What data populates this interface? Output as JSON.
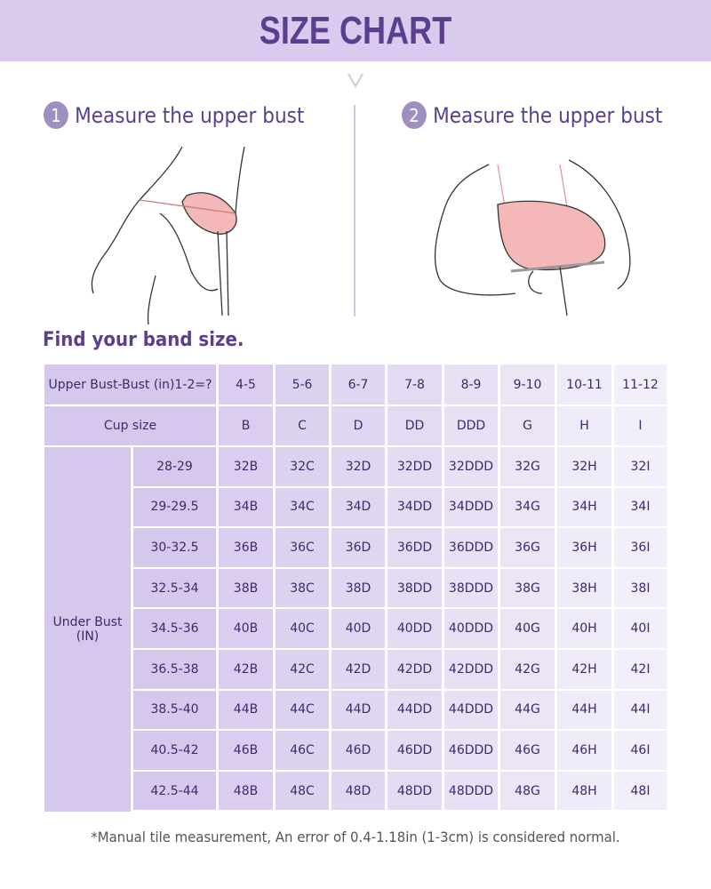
{
  "title": "SIZE CHART",
  "steps": [
    {
      "number": "1",
      "label": "Measure the upper bust"
    },
    {
      "number": "2",
      "label": "Measure the upper bust"
    }
  ],
  "subtitle": "Find your band size.",
  "table": {
    "diff_header": "Upper Bust-Bust (in)1-2=?",
    "diff_values": [
      "4-5",
      "5-6",
      "6-7",
      "7-8",
      "8-9",
      "9-10",
      "10-11",
      "11-12"
    ],
    "cup_header": "Cup size",
    "cups": [
      "B",
      "C",
      "D",
      "DD",
      "DDD",
      "G",
      "H",
      "I"
    ],
    "under_bust_label": "Under Bust (IN)",
    "rows": [
      {
        "range": "28-29",
        "sizes": [
          "32B",
          "32C",
          "32D",
          "32DD",
          "32DDD",
          "32G",
          "32H",
          "32I"
        ]
      },
      {
        "range": "29-29.5",
        "sizes": [
          "34B",
          "34C",
          "34D",
          "34DD",
          "34DDD",
          "34G",
          "34H",
          "34I"
        ]
      },
      {
        "range": "30-32.5",
        "sizes": [
          "36B",
          "36C",
          "36D",
          "36DD",
          "36DDD",
          "36G",
          "36H",
          "36I"
        ]
      },
      {
        "range": "32.5-34",
        "sizes": [
          "38B",
          "38C",
          "38D",
          "38DD",
          "38DDD",
          "38G",
          "38H",
          "38I"
        ]
      },
      {
        "range": "34.5-36",
        "sizes": [
          "40B",
          "40C",
          "40D",
          "40DD",
          "40DDD",
          "40G",
          "40H",
          "40I"
        ]
      },
      {
        "range": "36.5-38",
        "sizes": [
          "42B",
          "42C",
          "42D",
          "42DD",
          "42DDD",
          "42G",
          "42H",
          "42I"
        ]
      },
      {
        "range": "38.5-40",
        "sizes": [
          "44B",
          "44C",
          "44D",
          "44DD",
          "44DDD",
          "44G",
          "44H",
          "44I"
        ]
      },
      {
        "range": "40.5-42",
        "sizes": [
          "46B",
          "46C",
          "46D",
          "46DD",
          "46DDD",
          "46G",
          "46H",
          "46I"
        ]
      },
      {
        "range": "42.5-44",
        "sizes": [
          "48B",
          "48C",
          "48D",
          "48DD",
          "48DDD",
          "48G",
          "48H",
          "48I"
        ]
      }
    ]
  },
  "note": "*Manual tile measurement, An error of 0.4-1.18in (1-3cm) is considered normal.",
  "colors": {
    "banner": "#d9cbee",
    "accent": "#5b3f8e",
    "bra": "#f4b8b8"
  }
}
